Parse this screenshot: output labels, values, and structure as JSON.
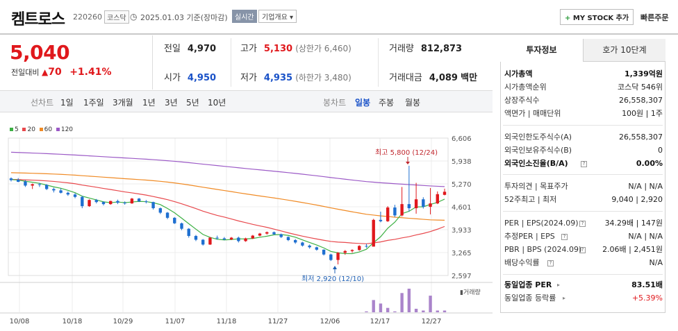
{
  "header": {
    "name": "켐트로스",
    "code": "220260",
    "market": "코스닥",
    "date_text": "2025.01.03 기준(장마감)",
    "realtime": "실시간",
    "overview": "기업개요",
    "mystock": "MY STOCK 추가",
    "quick_order": "빠른주문"
  },
  "price": {
    "current": "5,040",
    "change_label": "전일대비",
    "change": "70",
    "change_pct": "+1.41%"
  },
  "quote": {
    "prev_label": "전일",
    "prev": "4,970",
    "high_label": "고가",
    "high": "5,130",
    "upper_limit": "(상한가 6,460)",
    "volume_label": "거래량",
    "volume": "812,873",
    "open_label": "시가",
    "open": "4,950",
    "low_label": "저가",
    "low": "4,935",
    "lower_limit": "(하한가 3,480)",
    "amount_label": "거래대금",
    "amount": "4,089",
    "amount_unit": "백만"
  },
  "toolbar": {
    "line_label": "선차트",
    "periods": [
      "1일",
      "1주일",
      "3개월",
      "1년",
      "3년",
      "5년",
      "10년"
    ],
    "candle_label": "봉차트",
    "candle_types": [
      "일봉",
      "주봉",
      "월봉"
    ],
    "selected_candle": "일봉"
  },
  "chart_data": {
    "type": "candlestick",
    "legend": [
      "5",
      "20",
      "60",
      "120"
    ],
    "ma_colors": {
      "5": "#3cb043",
      "20": "#e8484c",
      "60": "#f08a24",
      "120": "#9b59c6"
    },
    "up_color": "#e0181c",
    "down_color": "#1e6fd0",
    "ylim": [
      2597,
      6606
    ],
    "y_ticks": [
      "6,606",
      "5,938",
      "5,270",
      "4,601",
      "3,933",
      "3,265",
      "2,597"
    ],
    "x_ticks": [
      "10/08",
      "10/18",
      "10/29",
      "11/07",
      "11/18",
      "11/27",
      "12/06",
      "12/17",
      "12/27"
    ],
    "volume_label": "거래량",
    "high_annotation": "최고 5,800 (12/24)",
    "low_annotation": "최저 2,920 (12/10)",
    "candles": [
      [
        5430,
        5460,
        5340,
        5380
      ],
      [
        5390,
        5440,
        5320,
        5330
      ],
      [
        5340,
        5380,
        5180,
        5220
      ],
      [
        5220,
        5280,
        5120,
        5260
      ],
      [
        5260,
        5300,
        5180,
        5240
      ],
      [
        5240,
        5260,
        5090,
        5120
      ],
      [
        5120,
        5160,
        5020,
        5080
      ],
      [
        5080,
        5140,
        4990,
        5010
      ],
      [
        5010,
        5050,
        4920,
        4960
      ],
      [
        4960,
        5000,
        4850,
        4890
      ],
      [
        4890,
        4920,
        4560,
        4620
      ],
      [
        4620,
        4820,
        4600,
        4800
      ],
      [
        4800,
        4830,
        4700,
        4740
      ],
      [
        4740,
        4760,
        4640,
        4680
      ],
      [
        4680,
        4780,
        4660,
        4770
      ],
      [
        4770,
        4810,
        4680,
        4720
      ],
      [
        4720,
        4760,
        4660,
        4700
      ],
      [
        4700,
        4860,
        4690,
        4840
      ],
      [
        4840,
        4860,
        4740,
        4760
      ],
      [
        4760,
        4800,
        4700,
        4740
      ],
      [
        4740,
        4750,
        4520,
        4560
      ],
      [
        4560,
        4580,
        4390,
        4430
      ],
      [
        4430,
        4450,
        4240,
        4280
      ],
      [
        4280,
        4300,
        4100,
        4120
      ],
      [
        4120,
        4140,
        3920,
        3960
      ],
      [
        3960,
        3980,
        3700,
        3750
      ],
      [
        3750,
        3780,
        3600,
        3640
      ],
      [
        3640,
        3660,
        3470,
        3500
      ],
      [
        3500,
        3720,
        3490,
        3700
      ],
      [
        3700,
        3760,
        3640,
        3680
      ],
      [
        3680,
        3720,
        3620,
        3650
      ],
      [
        3650,
        3720,
        3630,
        3700
      ],
      [
        3700,
        3730,
        3560,
        3600
      ],
      [
        3600,
        3700,
        3580,
        3680
      ],
      [
        3680,
        3780,
        3660,
        3760
      ],
      [
        3760,
        3840,
        3740,
        3820
      ],
      [
        3820,
        3880,
        3790,
        3860
      ],
      [
        3860,
        3880,
        3780,
        3800
      ],
      [
        3800,
        3820,
        3690,
        3720
      ],
      [
        3720,
        3740,
        3600,
        3630
      ],
      [
        3630,
        3660,
        3520,
        3560
      ],
      [
        3560,
        3580,
        3440,
        3470
      ],
      [
        3470,
        3500,
        3380,
        3420
      ],
      [
        3420,
        3440,
        3320,
        3350
      ],
      [
        3350,
        3360,
        3180,
        3210
      ],
      [
        3210,
        3230,
        3020,
        3050
      ],
      [
        3050,
        3280,
        2920,
        3260
      ],
      [
        3260,
        3340,
        3200,
        3310
      ],
      [
        3310,
        3360,
        3260,
        3340
      ],
      [
        3340,
        3480,
        3320,
        3460
      ],
      [
        3460,
        3520,
        3400,
        3440
      ],
      [
        3440,
        4250,
        3440,
        4220
      ],
      [
        4220,
        4460,
        4150,
        4180
      ],
      [
        4180,
        4620,
        4160,
        4580
      ],
      [
        4580,
        4660,
        4300,
        4350
      ],
      [
        4350,
        5180,
        4320,
        4680
      ],
      [
        4680,
        5800,
        4460,
        4560
      ],
      [
        4560,
        5300,
        4400,
        4820
      ],
      [
        4820,
        4880,
        4550,
        4600
      ],
      [
        4600,
        5150,
        4380,
        4700
      ],
      [
        4700,
        5050,
        4680,
        4970
      ],
      [
        4950,
        5130,
        4935,
        5040
      ]
    ],
    "volumes": [
      0,
      0,
      0,
      0,
      0,
      0,
      0,
      0,
      0,
      0,
      0,
      0,
      0,
      0,
      0,
      0,
      0,
      0,
      0,
      0,
      0,
      0,
      0,
      0,
      0,
      0,
      0,
      0,
      0,
      0,
      0,
      0,
      0,
      0,
      0,
      0,
      0,
      0,
      0,
      0,
      0,
      0,
      0,
      0,
      0,
      0,
      0,
      0,
      0,
      0,
      1,
      14,
      10,
      5,
      1,
      22,
      27,
      4,
      2,
      19,
      2,
      2
    ]
  },
  "sidebar": {
    "tab_invest": "투자정보",
    "tab_quote": "호가 10단계",
    "market_cap_label": "시가총액",
    "market_cap": "1,339억원",
    "cap_rank_label": "시가총액순위",
    "cap_rank": "코스닥 546위",
    "shares_label": "상장주식수",
    "shares": "26,558,307",
    "par_label": "액면가 | 매매단위",
    "par": "100원 | 1주",
    "foreign_limit_label": "외국인한도주식수(A)",
    "foreign_limit": "26,558,307",
    "foreign_hold_label": "외국인보유주식수(B)",
    "foreign_hold": "0",
    "foreign_ratio_label": "외국인소진율(B/A)",
    "foreign_ratio": "0.00%",
    "opinion_label": "투자의견 | 목표주가",
    "opinion": "N/A | N/A",
    "week52_label": "52주최고 | 최저",
    "week52": "9,040 | 2,920",
    "per_label": "PER | EPS(2024.09)",
    "per": "34.29배 | 147원",
    "est_per_label": "추정PER | EPS",
    "est_per": "N/A | N/A",
    "pbr_label": "PBR | BPS (2024.09)",
    "pbr": "2.06배 | 2,451원",
    "div_label": "배당수익률",
    "div": "N/A",
    "sector_per_label": "동일업종 PER",
    "sector_per": "83.51배",
    "sector_rate_label": "동일업종 등락률",
    "sector_rate": "+5.39%"
  }
}
